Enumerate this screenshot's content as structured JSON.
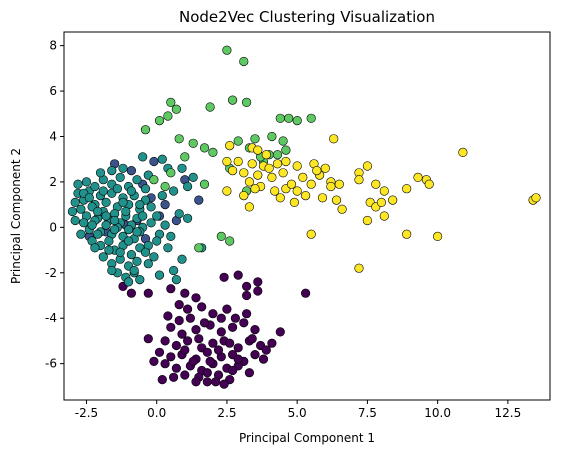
{
  "chart_data": {
    "type": "scatter",
    "title": "Node2Vec Clustering Visualization",
    "xlabel": "Principal Component 1",
    "ylabel": "Principal Component 2",
    "xlim": [
      -3.3,
      14.0
    ],
    "ylim": [
      -7.6,
      8.6
    ],
    "xticks": [
      "-2.5",
      "0.0",
      "2.5",
      "5.0",
      "7.5",
      "10.0",
      "12.5"
    ],
    "yticks": [
      "-6",
      "-4",
      "-2",
      "0",
      "2",
      "4",
      "6",
      "8"
    ],
    "grid": false,
    "legend": "none",
    "series": [
      {
        "color": "#440154",
        "points": [
          [
            1.6,
            -3.5
          ],
          [
            2.0,
            -3.8
          ],
          [
            2.5,
            -3.6
          ],
          [
            2.8,
            -4.0
          ],
          [
            1.2,
            -4.0
          ],
          [
            0.5,
            -4.4
          ],
          [
            0.9,
            -4.7
          ],
          [
            1.4,
            -4.5
          ],
          [
            1.9,
            -4.3
          ],
          [
            2.3,
            -4.6
          ],
          [
            2.7,
            -4.4
          ],
          [
            3.1,
            -4.2
          ],
          [
            3.5,
            -4.5
          ],
          [
            0.3,
            -5.0
          ],
          [
            0.7,
            -5.2
          ],
          [
            1.1,
            -5.0
          ],
          [
            1.6,
            -5.3
          ],
          [
            2.0,
            -5.1
          ],
          [
            2.4,
            -5.0
          ],
          [
            2.9,
            -5.3
          ],
          [
            3.3,
            -5.0
          ],
          [
            3.7,
            -5.2
          ],
          [
            0.1,
            -5.5
          ],
          [
            0.5,
            -5.7
          ],
          [
            0.9,
            -5.6
          ],
          [
            1.4,
            -5.8
          ],
          [
            1.8,
            -5.5
          ],
          [
            2.3,
            -5.7
          ],
          [
            2.7,
            -5.6
          ],
          [
            3.1,
            -5.9
          ],
          [
            3.5,
            -5.6
          ],
          [
            0.3,
            -6.0
          ],
          [
            0.7,
            -6.2
          ],
          [
            1.2,
            -6.1
          ],
          [
            1.6,
            -6.3
          ],
          [
            2.0,
            -6.0
          ],
          [
            2.5,
            -6.2
          ],
          [
            2.9,
            -6.1
          ],
          [
            3.3,
            -6.4
          ],
          [
            1.0,
            -6.5
          ],
          [
            1.5,
            -6.6
          ],
          [
            2.2,
            -6.5
          ],
          [
            2.6,
            -6.7
          ],
          [
            1.4,
            -6.8
          ],
          [
            1.8,
            -6.8
          ],
          [
            2.4,
            -6.9
          ],
          [
            0.2,
            -6.7
          ],
          [
            -0.1,
            -5.9
          ],
          [
            -0.3,
            -4.9
          ],
          [
            3.9,
            -5.4
          ],
          [
            4.4,
            -4.6
          ],
          [
            4.1,
            -5.1
          ],
          [
            3.8,
            -5.8
          ],
          [
            3.2,
            -3.0
          ],
          [
            3.6,
            -2.8
          ],
          [
            3.2,
            -3.8
          ],
          [
            2.9,
            -2.1
          ],
          [
            3.6,
            -2.4
          ],
          [
            3.2,
            -2.6
          ],
          [
            2.4,
            -2.2
          ],
          [
            5.3,
            -2.9
          ],
          [
            -1.2,
            -2.6
          ],
          [
            -0.9,
            -2.9
          ],
          [
            -0.3,
            -2.9
          ],
          [
            0.5,
            -2.7
          ],
          [
            1.0,
            -2.9
          ],
          [
            1.4,
            -3.1
          ],
          [
            0.8,
            -3.4
          ],
          [
            1.7,
            -4.2
          ],
          [
            2.2,
            -5.4
          ],
          [
            2.6,
            -5.1
          ],
          [
            1.0,
            -5.4
          ],
          [
            1.3,
            -5.9
          ],
          [
            1.8,
            -6.4
          ],
          [
            2.9,
            -5.8
          ],
          [
            3.4,
            -4.9
          ],
          [
            0.6,
            -6.6
          ],
          [
            2.1,
            -6.8
          ],
          [
            2.7,
            -6.3
          ],
          [
            1.9,
            -5.9
          ],
          [
            1.5,
            -4.9
          ],
          [
            0.8,
            -4.1
          ],
          [
            2.3,
            -4.0
          ],
          [
            0.4,
            -3.9
          ],
          [
            1.1,
            -3.6
          ]
        ]
      },
      {
        "color": "#3b528b",
        "points": [
          [
            -1.5,
            2.8
          ],
          [
            -0.9,
            2.5
          ],
          [
            -0.5,
            1.9
          ],
          [
            -0.2,
            1.3
          ],
          [
            0.3,
            1.0
          ],
          [
            0.1,
            0.5
          ],
          [
            -0.7,
            0.3
          ],
          [
            -1.1,
            0.1
          ],
          [
            -1.8,
            -0.2
          ],
          [
            -2.4,
            -0.4
          ],
          [
            -0.4,
            -0.5
          ],
          [
            0.7,
            0.3
          ],
          [
            1.5,
            1.2
          ],
          [
            1.0,
            2.1
          ],
          [
            -0.1,
            2.9
          ]
        ]
      },
      {
        "color": "#21918c",
        "points": [
          [
            -2.8,
            1.5
          ],
          [
            -2.6,
            1.2
          ],
          [
            -2.4,
            1.6
          ],
          [
            -2.2,
            1.0
          ],
          [
            -2.0,
            1.4
          ],
          [
            -1.8,
            1.1
          ],
          [
            -1.6,
            1.5
          ],
          [
            -1.4,
            0.9
          ],
          [
            -1.2,
            1.3
          ],
          [
            -1.0,
            1.0
          ],
          [
            -0.8,
            1.4
          ],
          [
            -0.6,
            0.8
          ],
          [
            -0.4,
            1.2
          ],
          [
            -2.7,
            0.8
          ],
          [
            -2.5,
            0.5
          ],
          [
            -2.3,
            0.9
          ],
          [
            -2.1,
            0.4
          ],
          [
            -1.9,
            0.7
          ],
          [
            -1.7,
            0.3
          ],
          [
            -1.5,
            0.6
          ],
          [
            -1.3,
            0.2
          ],
          [
            -1.1,
            0.5
          ],
          [
            -0.9,
            0.1
          ],
          [
            -0.7,
            0.4
          ],
          [
            -0.5,
            0.0
          ],
          [
            -2.6,
            0.2
          ],
          [
            -2.4,
            -0.1
          ],
          [
            -2.2,
            0.3
          ],
          [
            -2.0,
            -0.2
          ],
          [
            -1.8,
            0.1
          ],
          [
            -1.6,
            -0.3
          ],
          [
            -1.4,
            0.0
          ],
          [
            -1.2,
            -0.4
          ],
          [
            -1.0,
            -0.1
          ],
          [
            -0.8,
            -0.5
          ],
          [
            -0.6,
            -0.2
          ],
          [
            -2.3,
            -0.6
          ],
          [
            -2.0,
            -0.8
          ],
          [
            -1.7,
            -0.6
          ],
          [
            -1.5,
            -1.0
          ],
          [
            -1.2,
            -0.8
          ],
          [
            -0.9,
            -1.2
          ],
          [
            -0.6,
            -0.9
          ],
          [
            -1.9,
            -1.3
          ],
          [
            -1.6,
            -1.6
          ],
          [
            -1.3,
            -1.4
          ],
          [
            -1.0,
            -1.7
          ],
          [
            -0.7,
            -1.5
          ],
          [
            -1.4,
            -2.0
          ],
          [
            -1.1,
            -2.2
          ],
          [
            -0.8,
            -2.0
          ],
          [
            -2.8,
            1.9
          ],
          [
            -2.5,
            2.0
          ],
          [
            -2.2,
            1.8
          ],
          [
            -1.9,
            2.1
          ],
          [
            -1.6,
            1.9
          ],
          [
            -1.3,
            2.2
          ],
          [
            -1.0,
            1.8
          ],
          [
            -0.7,
            2.1
          ],
          [
            -0.4,
            1.7
          ],
          [
            -2.9,
            1.1
          ],
          [
            -3.0,
            0.7
          ],
          [
            -2.9,
            0.3
          ],
          [
            -2.7,
            -0.3
          ],
          [
            -0.2,
            0.9
          ],
          [
            0.0,
            0.5
          ],
          [
            0.2,
            1.4
          ],
          [
            0.3,
            0.1
          ],
          [
            0.1,
            -0.3
          ],
          [
            -0.3,
            -0.8
          ],
          [
            -0.1,
            -1.3
          ],
          [
            0.4,
            -0.9
          ],
          [
            0.6,
            -1.9
          ],
          [
            0.7,
            -2.3
          ],
          [
            0.9,
            -1.4
          ],
          [
            0.5,
            -0.4
          ],
          [
            0.6,
            1.6
          ],
          [
            0.8,
            0.6
          ],
          [
            1.1,
            1.8
          ],
          [
            1.3,
            2.2
          ],
          [
            0.4,
            2.6
          ],
          [
            -0.3,
            2.3
          ],
          [
            0.2,
            3.0
          ],
          [
            -0.5,
            3.1
          ],
          [
            -1.6,
            2.5
          ],
          [
            -1.2,
            2.6
          ],
          [
            -2.0,
            2.4
          ],
          [
            -1.5,
            -0.1
          ],
          [
            -1.8,
            0.5
          ],
          [
            -1.1,
            0.7
          ],
          [
            -0.9,
            1.6
          ],
          [
            -1.4,
            1.7
          ],
          [
            -2.1,
            0.7
          ],
          [
            -2.6,
            1.5
          ],
          [
            -0.5,
            0.5
          ],
          [
            -0.7,
            -0.2
          ],
          [
            -1.3,
            -1.1
          ],
          [
            -0.8,
            -1.9
          ],
          [
            -1.7,
            -1.0
          ],
          [
            -2.1,
            -0.3
          ],
          [
            -0.3,
            -1.6
          ],
          [
            0.1,
            -2.1
          ],
          [
            -1.0,
            -2.4
          ],
          [
            -0.6,
            -2.3
          ],
          [
            1.6,
            -0.9
          ],
          [
            1.1,
            0.4
          ],
          [
            0.9,
            2.6
          ],
          [
            -2.4,
            1.3
          ],
          [
            -1.9,
            1.6
          ],
          [
            -1.2,
            1.1
          ],
          [
            -0.6,
            1.0
          ],
          [
            -0.2,
            0.2
          ],
          [
            -2.3,
            0.1
          ],
          [
            -1.5,
            0.3
          ],
          [
            -1.0,
            -0.6
          ],
          [
            -0.4,
            -1.1
          ],
          [
            0.0,
            -0.6
          ],
          [
            -2.2,
            -0.9
          ],
          [
            -1.6,
            -1.9
          ]
        ]
      },
      {
        "color": "#5ec962",
        "points": [
          [
            2.5,
            7.8
          ],
          [
            3.1,
            7.3
          ],
          [
            0.5,
            5.5
          ],
          [
            0.7,
            5.2
          ],
          [
            0.4,
            4.9
          ],
          [
            1.9,
            5.3
          ],
          [
            2.7,
            5.6
          ],
          [
            3.2,
            5.5
          ],
          [
            4.7,
            4.8
          ],
          [
            5.0,
            4.7
          ],
          [
            4.4,
            4.8
          ],
          [
            5.5,
            4.8
          ],
          [
            -0.4,
            4.3
          ],
          [
            0.1,
            4.7
          ],
          [
            0.8,
            3.9
          ],
          [
            1.3,
            3.7
          ],
          [
            1.7,
            3.5
          ],
          [
            2.9,
            3.8
          ],
          [
            3.5,
            3.9
          ],
          [
            4.5,
            3.8
          ],
          [
            4.0,
            3.2
          ],
          [
            4.3,
            3.2
          ],
          [
            3.8,
            2.9
          ],
          [
            4.6,
            3.4
          ],
          [
            -0.1,
            2.1
          ],
          [
            0.3,
            1.8
          ],
          [
            1.7,
            1.9
          ],
          [
            3.2,
            1.6
          ],
          [
            2.3,
            -0.4
          ],
          [
            2.6,
            -0.6
          ],
          [
            1.5,
            -0.9
          ],
          [
            2.0,
            3.3
          ],
          [
            3.7,
            3.1
          ],
          [
            2.6,
            2.6
          ],
          [
            3.3,
            3.5
          ],
          [
            1.0,
            3.1
          ],
          [
            4.1,
            4.0
          ],
          [
            0.5,
            2.4
          ]
        ]
      },
      {
        "color": "#fde725",
        "points": [
          [
            2.6,
            3.6
          ],
          [
            3.4,
            3.5
          ],
          [
            3.6,
            3.4
          ],
          [
            3.9,
            3.2
          ],
          [
            2.5,
            2.9
          ],
          [
            2.9,
            2.9
          ],
          [
            3.4,
            2.8
          ],
          [
            3.8,
            2.7
          ],
          [
            4.3,
            2.8
          ],
          [
            4.6,
            2.9
          ],
          [
            5.0,
            2.7
          ],
          [
            5.6,
            2.8
          ],
          [
            6.0,
            2.6
          ],
          [
            2.7,
            2.5
          ],
          [
            3.1,
            2.4
          ],
          [
            3.6,
            2.3
          ],
          [
            4.1,
            2.2
          ],
          [
            4.5,
            2.4
          ],
          [
            5.2,
            2.2
          ],
          [
            5.8,
            2.3
          ],
          [
            3.3,
            2.0
          ],
          [
            3.7,
            1.8
          ],
          [
            4.2,
            1.6
          ],
          [
            4.6,
            1.7
          ],
          [
            5.0,
            1.6
          ],
          [
            5.5,
            1.9
          ],
          [
            6.2,
            2.0
          ],
          [
            6.5,
            1.9
          ],
          [
            2.5,
            1.6
          ],
          [
            3.1,
            1.4
          ],
          [
            3.5,
            1.7
          ],
          [
            4.4,
            1.3
          ],
          [
            4.9,
            1.1
          ],
          [
            5.3,
            1.4
          ],
          [
            5.9,
            1.3
          ],
          [
            6.4,
            1.2
          ],
          [
            7.2,
            2.4
          ],
          [
            7.5,
            2.7
          ],
          [
            7.8,
            1.9
          ],
          [
            8.1,
            1.6
          ],
          [
            8.4,
            1.2
          ],
          [
            8.9,
            1.7
          ],
          [
            9.3,
            2.2
          ],
          [
            9.6,
            2.1
          ],
          [
            9.7,
            1.9
          ],
          [
            10.9,
            3.3
          ],
          [
            7.6,
            1.1
          ],
          [
            7.8,
            0.9
          ],
          [
            8.0,
            1.1
          ],
          [
            8.1,
            0.5
          ],
          [
            7.5,
            0.3
          ],
          [
            6.3,
            3.9
          ],
          [
            7.2,
            2.1
          ],
          [
            8.9,
            -0.3
          ],
          [
            10.0,
            -0.4
          ],
          [
            7.2,
            -1.8
          ],
          [
            5.5,
            -0.3
          ],
          [
            13.4,
            1.2
          ],
          [
            13.5,
            1.3
          ],
          [
            3.3,
            0.9
          ],
          [
            6.6,
            0.8
          ],
          [
            4.8,
            1.9
          ],
          [
            4.0,
            2.6
          ],
          [
            6.2,
            1.8
          ],
          [
            5.7,
            2.5
          ]
        ]
      }
    ]
  }
}
